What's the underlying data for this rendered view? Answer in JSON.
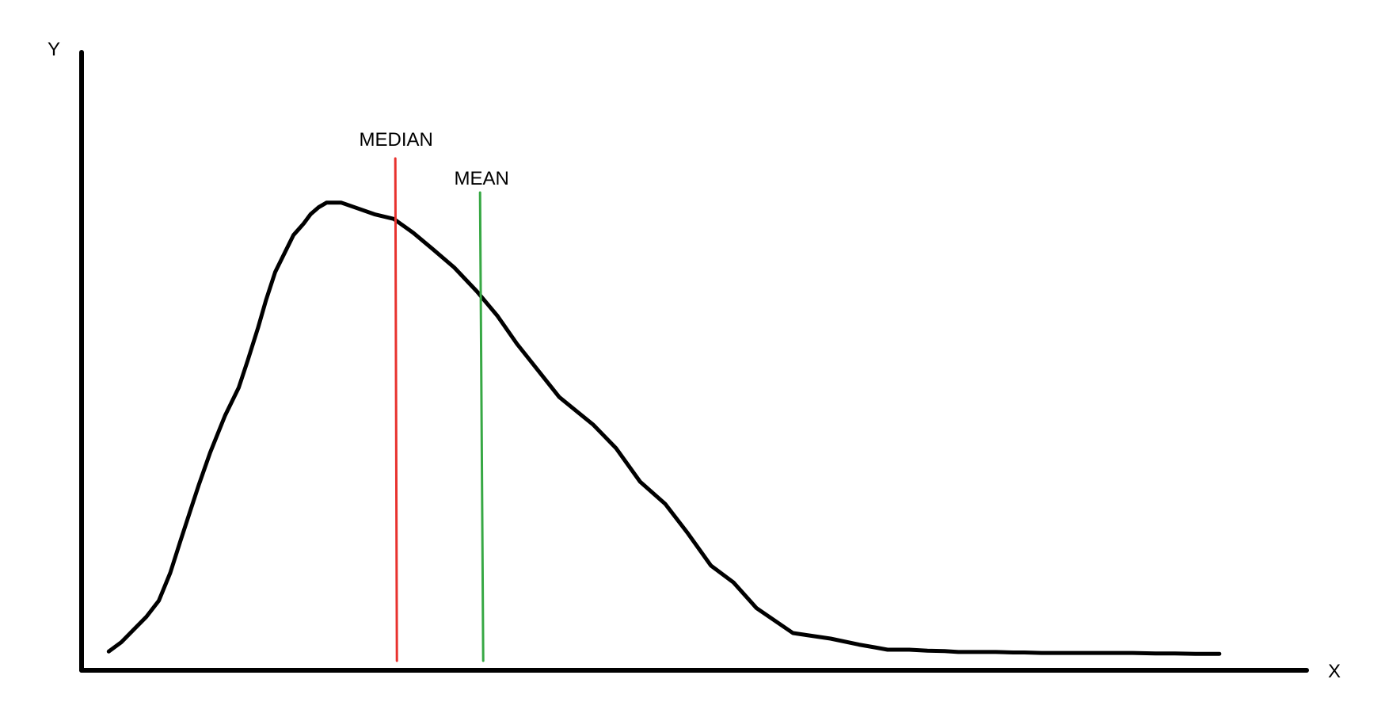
{
  "chart_data": {
    "type": "line",
    "title": "",
    "xlabel": "X",
    "ylabel": "Y",
    "grid": false,
    "xlim": [
      0,
      100
    ],
    "ylim": [
      0,
      100
    ],
    "series": [
      {
        "values_x": [
          1.2,
          2.3,
          3.3,
          4.5,
          5.6,
          6.6,
          7.5,
          8.3,
          9.1,
          10.1,
          11.4,
          12.6,
          13.4,
          14.3,
          15.0,
          15.8,
          16.6,
          17.4,
          18.3,
          18.9,
          19.6,
          20.3,
          21.6,
          23.0,
          24.5,
          26.2,
          27.9,
          29.6,
          31.5,
          33.5,
          35.3,
          37.0,
          38.9,
          40.7,
          42.3,
          43.7,
          45.7,
          47.8,
          50.0,
          52.0,
          54.0,
          56.0,
          58.0,
          61.2,
          64.5,
          67.0,
          68.4,
          69.5,
          71.4,
          73.0,
          74.5,
          75.7,
          77.5,
          79.0,
          80.5,
          81.5,
          83.0,
          84.6,
          86.1,
          87.5,
          89.0,
          91.0,
          93.0,
          94.7,
          96.5,
          97.5,
          98.6
        ],
        "values_y": [
          2.0,
          4.0,
          6.5,
          9.5,
          13.0,
          19.0,
          26.0,
          32.0,
          38.0,
          45.0,
          53.0,
          59.0,
          65.0,
          72.0,
          78.0,
          84.0,
          88.0,
          92.0,
          94.5,
          96.5,
          98.0,
          99.0,
          99.0,
          97.8,
          96.5,
          95.5,
          92.5,
          89.0,
          85.0,
          79.8,
          74.5,
          68.5,
          62.6,
          57.0,
          53.8,
          51.0,
          45.9,
          38.7,
          33.9,
          27.5,
          20.6,
          16.9,
          11.4,
          6.0,
          4.8,
          3.5,
          2.9,
          2.4,
          2.4,
          2.2,
          2.1,
          1.9,
          1.9,
          1.9,
          1.8,
          1.8,
          1.7,
          1.7,
          1.7,
          1.7,
          1.7,
          1.7,
          1.6,
          1.6,
          1.5,
          1.5,
          1.5
        ]
      }
    ],
    "annotations": [
      {
        "label": "MEDIAN",
        "x": 26.4,
        "color": "#e8322e"
      },
      {
        "label": "MEAN",
        "x": 33.9,
        "color": "#37a844"
      }
    ]
  }
}
